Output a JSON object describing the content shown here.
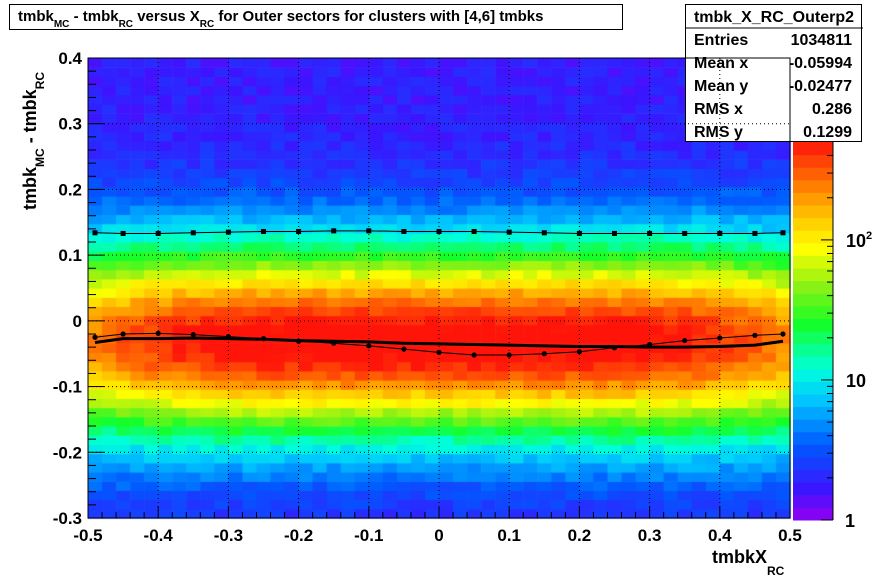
{
  "title": {
    "parts": [
      {
        "text": "tmbk",
        "type": "normal"
      },
      {
        "text": "MC",
        "type": "sub"
      },
      {
        "text": " - tmbk",
        "type": "normal"
      },
      {
        "text": "RC",
        "type": "sub"
      },
      {
        "text": " versus X",
        "type": "normal"
      },
      {
        "text": "RC",
        "type": "sub"
      },
      {
        "text": " for Outer sectors for clusters with [4,6] tmbks",
        "type": "normal"
      }
    ]
  },
  "stats": {
    "name": "tmbk_X_RC_Outerp2",
    "rows": [
      {
        "label": "Entries",
        "value": "1034811"
      },
      {
        "label": "Mean x",
        "value": "-0.05994"
      },
      {
        "label": "Mean y",
        "value": "-0.02477"
      },
      {
        "label": "RMS x",
        "value": "0.286"
      },
      {
        "label": "RMS y",
        "value": "0.1299"
      }
    ]
  },
  "chart_data": {
    "type": "heatmap",
    "title": "tmbk_MC - tmbk_RC versus X_RC for Outer sectors for clusters with [4,6] tmbks",
    "xlabel": "tmbkX_RC",
    "ylabel": "tmbk_MC - tmbk_RC",
    "xlim": [
      -0.5,
      0.5
    ],
    "ylim": [
      -0.3,
      0.4
    ],
    "x_ticks": [
      "-0.5",
      "-0.4",
      "-0.3",
      "-0.2",
      "-0.1",
      "0",
      "0.1",
      "0.2",
      "0.3",
      "0.4",
      "0.5"
    ],
    "y_ticks": [
      "-0.3",
      "-0.2",
      "-0.1",
      "0",
      "0.1",
      "0.2",
      "0.3",
      "0.4"
    ],
    "z_scale": "log",
    "z_range": [
      1,
      500
    ],
    "z_tick_labels": [
      "1",
      "10",
      "10^2"
    ],
    "grid": true,
    "x_bins": 50,
    "y_bins": 50,
    "profile_mean": {
      "x": [
        -0.49,
        -0.45,
        -0.4,
        -0.35,
        -0.3,
        -0.25,
        -0.2,
        -0.15,
        -0.1,
        -0.05,
        0,
        0.05,
        0.1,
        0.15,
        0.2,
        0.25,
        0.3,
        0.35,
        0.4,
        0.45,
        0.49
      ],
      "y": [
        -0.033,
        -0.027,
        -0.027,
        -0.026,
        -0.027,
        -0.028,
        -0.03,
        -0.031,
        -0.032,
        -0.034,
        -0.035,
        -0.036,
        -0.037,
        -0.038,
        -0.039,
        -0.039,
        -0.04,
        -0.04,
        -0.039,
        -0.037,
        -0.031
      ]
    },
    "profile_points_mean": {
      "x": [
        -0.49,
        -0.45,
        -0.4,
        -0.35,
        -0.3,
        -0.25,
        -0.2,
        -0.15,
        -0.1,
        -0.05,
        0,
        0.05,
        0.1,
        0.15,
        0.2,
        0.25,
        0.3,
        0.35,
        0.4,
        0.45,
        0.49
      ],
      "y": [
        -0.025,
        -0.02,
        -0.019,
        -0.021,
        -0.024,
        -0.027,
        -0.031,
        -0.034,
        -0.038,
        -0.043,
        -0.048,
        -0.052,
        -0.052,
        -0.05,
        -0.047,
        -0.041,
        -0.036,
        -0.03,
        -0.026,
        -0.022,
        -0.02
      ]
    },
    "profile_points_rms": {
      "x": [
        -0.49,
        -0.45,
        -0.4,
        -0.35,
        -0.3,
        -0.25,
        -0.2,
        -0.15,
        -0.1,
        -0.05,
        0,
        0.05,
        0.1,
        0.15,
        0.2,
        0.25,
        0.3,
        0.35,
        0.4,
        0.45,
        0.49
      ],
      "y": [
        0.134,
        0.133,
        0.133,
        0.134,
        0.135,
        0.136,
        0.136,
        0.137,
        0.137,
        0.136,
        0.136,
        0.136,
        0.135,
        0.134,
        0.133,
        0.133,
        0.133,
        0.133,
        0.133,
        0.133,
        0.134
      ]
    }
  }
}
